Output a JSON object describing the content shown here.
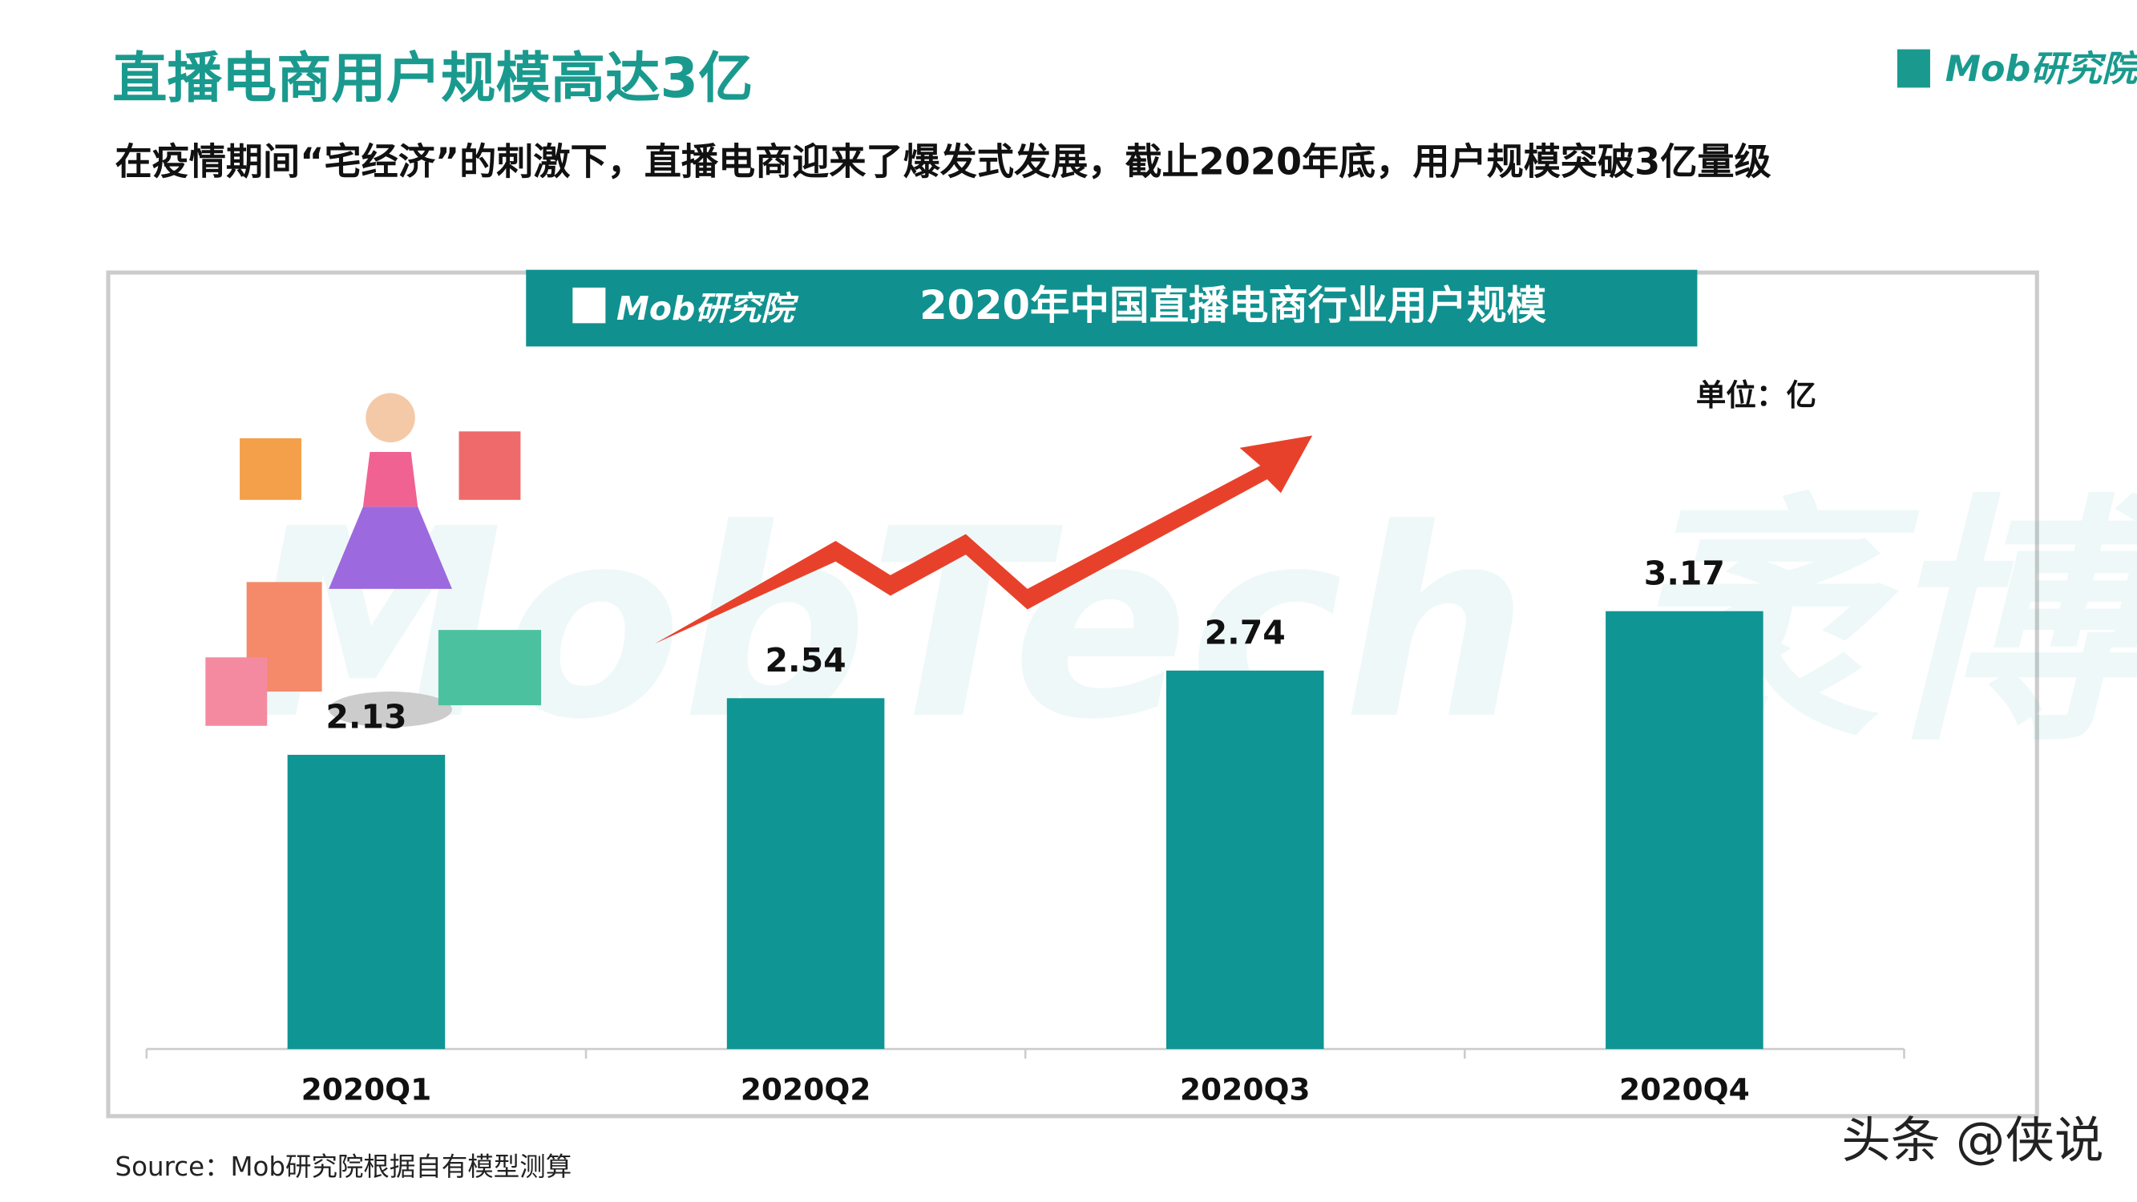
{
  "header": {
    "title": "直播电商用户规模高达3亿",
    "subtitle": "在疫情期间“宅经济”的刺激下，直播电商迎来了爆发式发展，截止2020年底，用户规模突破3亿量级",
    "logo": "Mob研究院"
  },
  "chart_data": {
    "type": "bar",
    "title": "2020年中国直播电商行业用户规模",
    "logo": "Mob研究院",
    "unit": "单位：亿",
    "background_watermark": "MobTech 袤博",
    "categories": [
      "2020Q1",
      "2020Q2",
      "2020Q3",
      "2020Q4"
    ],
    "values": [
      2.13,
      2.54,
      2.74,
      3.17
    ],
    "color": "#0e9594",
    "ylim": [
      0,
      3.5
    ]
  },
  "footer": {
    "source": "Source：Mob研究院根据自有模型测算",
    "watermark": "头条 @侠说"
  }
}
